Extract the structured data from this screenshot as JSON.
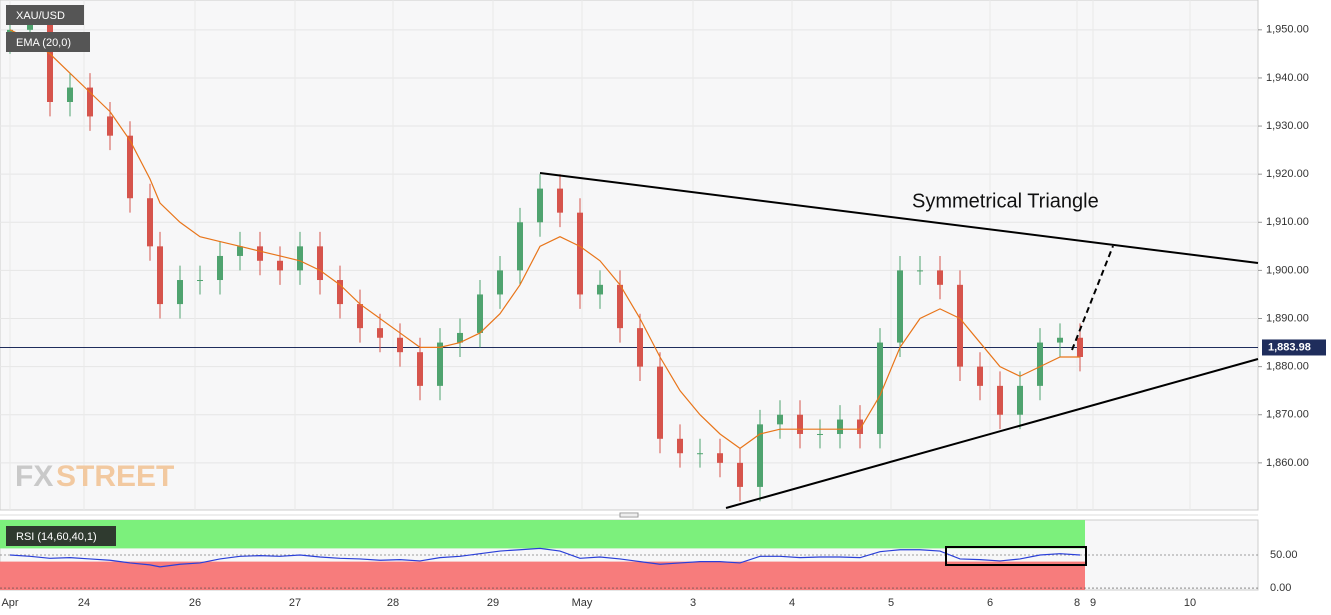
{
  "chart_data": {
    "type": "candlestick",
    "symbol": "XAU/USD",
    "indicator": "EMA (20,0)",
    "rsi_label": "RSI (14,60,40,1)",
    "annotation": "Symmetrical Triangle",
    "watermark": [
      "FX",
      "STREET"
    ],
    "up_color": "#4fa36f",
    "down_color": "#d6544c",
    "x": [
      0,
      0.2,
      0.4,
      0.6,
      0.8,
      1.0,
      1.2,
      1.4,
      1.5,
      1.7,
      1.9,
      2.1,
      2.3,
      2.5,
      2.7,
      2.9,
      3.1,
      3.3,
      3.5,
      3.7,
      3.9,
      4.1,
      4.3,
      4.5,
      4.7,
      4.9,
      5.1,
      5.3,
      5.5,
      5.7,
      5.9,
      6.1,
      6.3,
      6.5,
      6.7,
      6.9,
      7.1,
      7.3,
      7.5,
      7.7,
      7.9,
      8.1,
      8.3,
      8.5,
      8.7,
      8.9,
      9.1,
      9.3,
      9.5,
      9.7,
      9.9,
      10.1,
      10.3,
      10.5,
      10.7
    ],
    "open": [
      1948,
      1950,
      1952,
      1935,
      1938,
      1932,
      1928,
      1915,
      1905,
      1893,
      1898,
      1898,
      1903,
      1905,
      1902,
      1900,
      1905,
      1898,
      1893,
      1888,
      1886,
      1883,
      1876,
      1885,
      1887,
      1895,
      1900,
      1910,
      1917,
      1912,
      1895,
      1897,
      1888,
      1880,
      1865,
      1862,
      1862,
      1860,
      1855,
      1868,
      1870,
      1866,
      1866,
      1869,
      1866,
      1885,
      1900,
      1900,
      1897,
      1880,
      1876,
      1870,
      1876,
      1885,
      1886
    ],
    "high": [
      1953,
      1955,
      1955,
      1941,
      1941,
      1935,
      1931,
      1918,
      1908,
      1901,
      1901,
      1906,
      1908,
      1908,
      1905,
      1908,
      1908,
      1901,
      1896,
      1891,
      1889,
      1886,
      1888,
      1890,
      1898,
      1903,
      1913,
      1920,
      1920,
      1915,
      1900,
      1900,
      1891,
      1883,
      1868,
      1865,
      1865,
      1863,
      1871,
      1873,
      1873,
      1869,
      1872,
      1872,
      1888,
      1903,
      1903,
      1903,
      1900,
      1883,
      1879,
      1879,
      1888,
      1889,
      1889
    ],
    "low": [
      1945,
      1947,
      1932,
      1932,
      1929,
      1925,
      1912,
      1902,
      1890,
      1890,
      1895,
      1895,
      1900,
      1899,
      1897,
      1897,
      1895,
      1890,
      1885,
      1883,
      1880,
      1873,
      1873,
      1882,
      1884,
      1892,
      1897,
      1907,
      1909,
      1892,
      1892,
      1885,
      1877,
      1862,
      1859,
      1859,
      1857,
      1852,
      1852,
      1865,
      1863,
      1863,
      1863,
      1863,
      1863,
      1882,
      1897,
      1894,
      1877,
      1873,
      1867,
      1867,
      1873,
      1882,
      1879
    ],
    "close": [
      1950,
      1952,
      1935,
      1938,
      1932,
      1928,
      1915,
      1905,
      1893,
      1898,
      1898,
      1903,
      1905,
      1902,
      1900,
      1905,
      1898,
      1893,
      1888,
      1886,
      1883,
      1876,
      1885,
      1887,
      1895,
      1900,
      1910,
      1917,
      1912,
      1895,
      1897,
      1888,
      1880,
      1865,
      1862,
      1862,
      1860,
      1855,
      1868,
      1870,
      1866,
      1866,
      1869,
      1866,
      1885,
      1900,
      1900,
      1897,
      1880,
      1876,
      1870,
      1876,
      1885,
      1886,
      1882
    ],
    "ema": {
      "color": "#e8751a",
      "values": [
        1950,
        1948,
        1945,
        1941,
        1937,
        1933,
        1927,
        1919,
        1914,
        1910,
        1907,
        1906,
        1905,
        1904,
        1903,
        1902,
        1900,
        1897,
        1893,
        1890,
        1887,
        1884,
        1884,
        1885,
        1887,
        1891,
        1897,
        1905,
        1907,
        1905,
        1902,
        1897,
        1890,
        1882,
        1875,
        1870,
        1866,
        1863,
        1866,
        1867,
        1867,
        1867,
        1867,
        1867,
        1874,
        1884,
        1890,
        1892,
        1890,
        1885,
        1880,
        1878,
        1880,
        1882,
        1882
      ]
    },
    "rsi": {
      "color": "#2a3fd8",
      "values": [
        50,
        48,
        45,
        46,
        44,
        42,
        38,
        35,
        32,
        36,
        38,
        44,
        48,
        49,
        48,
        50,
        47,
        45,
        44,
        42,
        43,
        41,
        46,
        48,
        52,
        56,
        58,
        60,
        56,
        45,
        47,
        44,
        40,
        36,
        38,
        40,
        40,
        38,
        48,
        48,
        46,
        47,
        47,
        46,
        55,
        58,
        58,
        56,
        44,
        43,
        41,
        44,
        50,
        52,
        50
      ],
      "upper": 60,
      "lower": 40,
      "ylim": [
        -3,
        103
      ],
      "yticks": [
        {
          "value": 0,
          "label": "0.00"
        },
        {
          "value": 50,
          "label": "50.00"
        }
      ]
    },
    "last_price": {
      "value": 1883.98,
      "label": "1,883.98"
    },
    "xlim": [
      -0.1,
      12.48
    ],
    "xticks": [
      {
        "value": 0,
        "label": "Apr"
      },
      {
        "value": 0.74,
        "label": "24"
      },
      {
        "value": 1.85,
        "label": "26"
      },
      {
        "value": 2.85,
        "label": "27"
      },
      {
        "value": 3.83,
        "label": "28"
      },
      {
        "value": 4.83,
        "label": "29"
      },
      {
        "value": 5.72,
        "label": "May"
      },
      {
        "value": 6.83,
        "label": "3"
      },
      {
        "value": 7.82,
        "label": "4"
      },
      {
        "value": 8.81,
        "label": "5"
      },
      {
        "value": 9.8,
        "label": "6"
      },
      {
        "value": 10.67,
        "label": "8"
      },
      {
        "value": 10.83,
        "label": "9"
      },
      {
        "value": 11.8,
        "label": "10"
      }
    ],
    "ylim": [
      1850.2,
      1956.2
    ],
    "yticks": [
      {
        "value": 1860,
        "label": "1,860.00"
      },
      {
        "value": 1870,
        "label": "1,870.00"
      },
      {
        "value": 1880,
        "label": "1,880.00"
      },
      {
        "value": 1890,
        "label": "1,890.00"
      },
      {
        "value": 1900,
        "label": "1,900.00"
      },
      {
        "value": 1910,
        "label": "1,910.00"
      },
      {
        "value": 1920,
        "label": "1,920.00"
      },
      {
        "value": 1930,
        "label": "1,930.00"
      },
      {
        "value": 1940,
        "label": "1,940.00"
      },
      {
        "value": 1950,
        "label": "1,950.00"
      }
    ],
    "grid": true
  }
}
